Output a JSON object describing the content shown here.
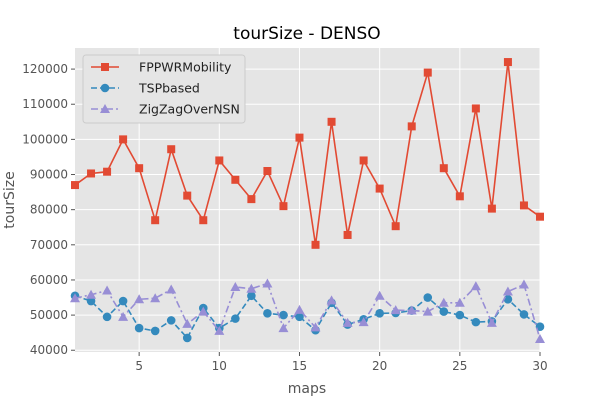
{
  "chart_data": {
    "type": "line",
    "title": "tourSize - DENSO",
    "xlabel": "maps",
    "ylabel": "tourSize",
    "xlim": [
      1,
      30
    ],
    "ylim": [
      39500,
      126000
    ],
    "xticks": [
      5,
      10,
      15,
      20,
      25,
      30
    ],
    "yticks": [
      40000,
      50000,
      60000,
      70000,
      80000,
      90000,
      100000,
      110000,
      120000
    ],
    "grid": true,
    "legend": "top-left",
    "x": [
      1,
      2,
      3,
      4,
      5,
      6,
      7,
      8,
      9,
      10,
      11,
      12,
      13,
      14,
      15,
      16,
      17,
      18,
      19,
      20,
      21,
      22,
      23,
      24,
      25,
      26,
      27,
      28,
      29,
      30
    ],
    "series": [
      {
        "name": "FPPWRMobility",
        "color": "#E24A33",
        "marker": "square",
        "linestyle": "solid",
        "values": [
          87000,
          90300,
          90800,
          100000,
          91800,
          77000,
          97200,
          84000,
          77000,
          94000,
          88500,
          83000,
          91000,
          81000,
          100500,
          70000,
          105000,
          72800,
          94000,
          86000,
          75300,
          103700,
          119000,
          91800,
          83800,
          108800,
          80300,
          122000,
          81200,
          78000
        ]
      },
      {
        "name": "TSPbased",
        "color": "#348ABD",
        "marker": "circle",
        "linestyle": "dashed",
        "values": [
          55500,
          54000,
          49500,
          54000,
          46300,
          45500,
          48500,
          43500,
          52000,
          46300,
          49000,
          55500,
          50500,
          50000,
          49500,
          45700,
          53500,
          47300,
          48800,
          50500,
          50600,
          51300,
          55000,
          51000,
          50000,
          48000,
          48200,
          54500,
          50200,
          46700
        ]
      },
      {
        "name": "ZigZagOverNSN",
        "color": "#988ED5",
        "marker": "triangle",
        "linestyle": "dashdot",
        "values": [
          54800,
          55800,
          57000,
          49500,
          54500,
          54800,
          57300,
          47500,
          51000,
          45500,
          58000,
          57500,
          59000,
          46300,
          51500,
          46500,
          54200,
          47800,
          48000,
          55500,
          51400,
          51300,
          51000,
          53500,
          53500,
          58200,
          47800,
          56700,
          58700,
          43200
        ]
      }
    ]
  }
}
